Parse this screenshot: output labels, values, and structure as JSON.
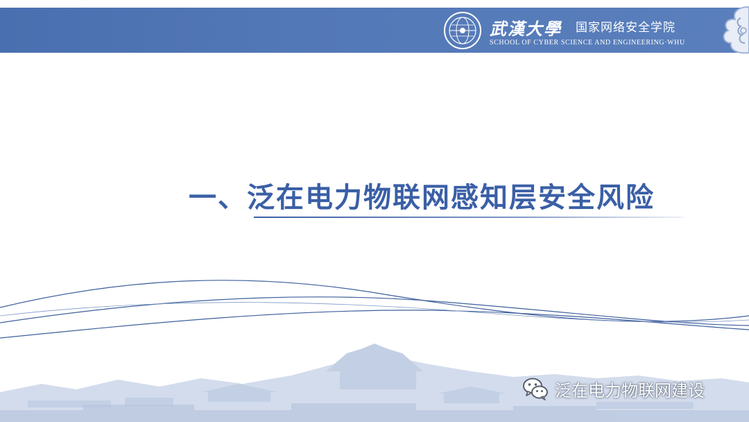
{
  "header": {
    "calligraphy_title": "武漢大學",
    "school_name_cn": "国家网络安全学院",
    "school_name_en": "SCHOOL OF CYBER SCIENCE AND ENGINEERING·WHU"
  },
  "slide": {
    "section_title": "一、泛在电力物联网感知层安全风险"
  },
  "watermark": {
    "text": "泛在电力物联网建设",
    "icon": "wechat-icon"
  },
  "colors": {
    "header_bar": "#5378b7",
    "title_text": "#3a5fa6",
    "skyline": "#c9d3e6"
  }
}
